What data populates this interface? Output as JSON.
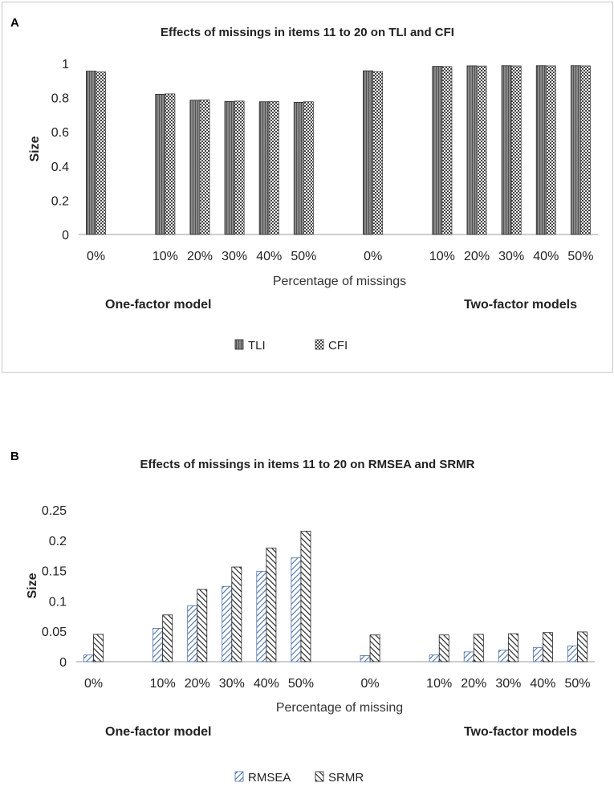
{
  "chart_data": [
    {
      "panel_label": "A",
      "type": "bar",
      "title": "Effects of missings in items 11 to 20 on TLI and CFI",
      "xlabel": "Percentage of missings",
      "ylabel": "Size",
      "ylim": [
        0,
        1
      ],
      "yticks": [
        "0",
        "0.2",
        "0.4",
        "0.6",
        "0.8",
        "1"
      ],
      "ytick_values": [
        0,
        0.2,
        0.4,
        0.6,
        0.8,
        1
      ],
      "categories": [
        "0%",
        "",
        "10%",
        "20%",
        "30%",
        "40%",
        "50%",
        "",
        "0%",
        "",
        "10%",
        "20%",
        "30%",
        "40%",
        "50%"
      ],
      "series": [
        {
          "name": "TLI",
          "values": [
            0.955,
            null,
            0.82,
            0.785,
            0.778,
            0.776,
            0.773,
            null,
            0.957,
            null,
            0.983,
            0.986,
            0.987,
            0.987,
            0.987
          ]
        },
        {
          "name": "CFI",
          "values": [
            0.95,
            null,
            0.822,
            0.787,
            0.78,
            0.778,
            0.776,
            null,
            0.952,
            null,
            0.982,
            0.985,
            0.986,
            0.986,
            0.986
          ]
        }
      ],
      "group_labels": {
        "left": "One-factor model",
        "right": "Two-factor models"
      },
      "legend": [
        "TLI",
        "CFI"
      ]
    },
    {
      "panel_label": "B",
      "type": "bar",
      "title": "Effects of missings in items 11 to 20 on RMSEA and SRMR",
      "xlabel": "Percentage of missing",
      "ylabel": "Size",
      "ylim": [
        0,
        0.25
      ],
      "yticks": [
        "0",
        "0.05",
        "0.1",
        "0.15",
        "0.2",
        "0.25"
      ],
      "ytick_values": [
        0,
        0.05,
        0.1,
        0.15,
        0.2,
        0.25
      ],
      "categories": [
        "0%",
        "",
        "10%",
        "20%",
        "30%",
        "40%",
        "50%",
        "",
        "0%",
        "",
        "10%",
        "20%",
        "30%",
        "40%",
        "50%"
      ],
      "series": [
        {
          "name": "RMSEA",
          "values": [
            0.011,
            null,
            0.055,
            0.092,
            0.124,
            0.149,
            0.171,
            null,
            0.01,
            null,
            0.011,
            0.016,
            0.019,
            0.023,
            0.026
          ]
        },
        {
          "name": "SRMR",
          "values": [
            0.045,
            null,
            0.077,
            0.119,
            0.156,
            0.187,
            0.215,
            null,
            0.044,
            null,
            0.044,
            0.045,
            0.046,
            0.048,
            0.049
          ]
        }
      ],
      "group_labels": {
        "left": "One-factor model",
        "right": "Two-factor models"
      },
      "legend": [
        "RMSEA",
        "SRMR"
      ]
    }
  ]
}
